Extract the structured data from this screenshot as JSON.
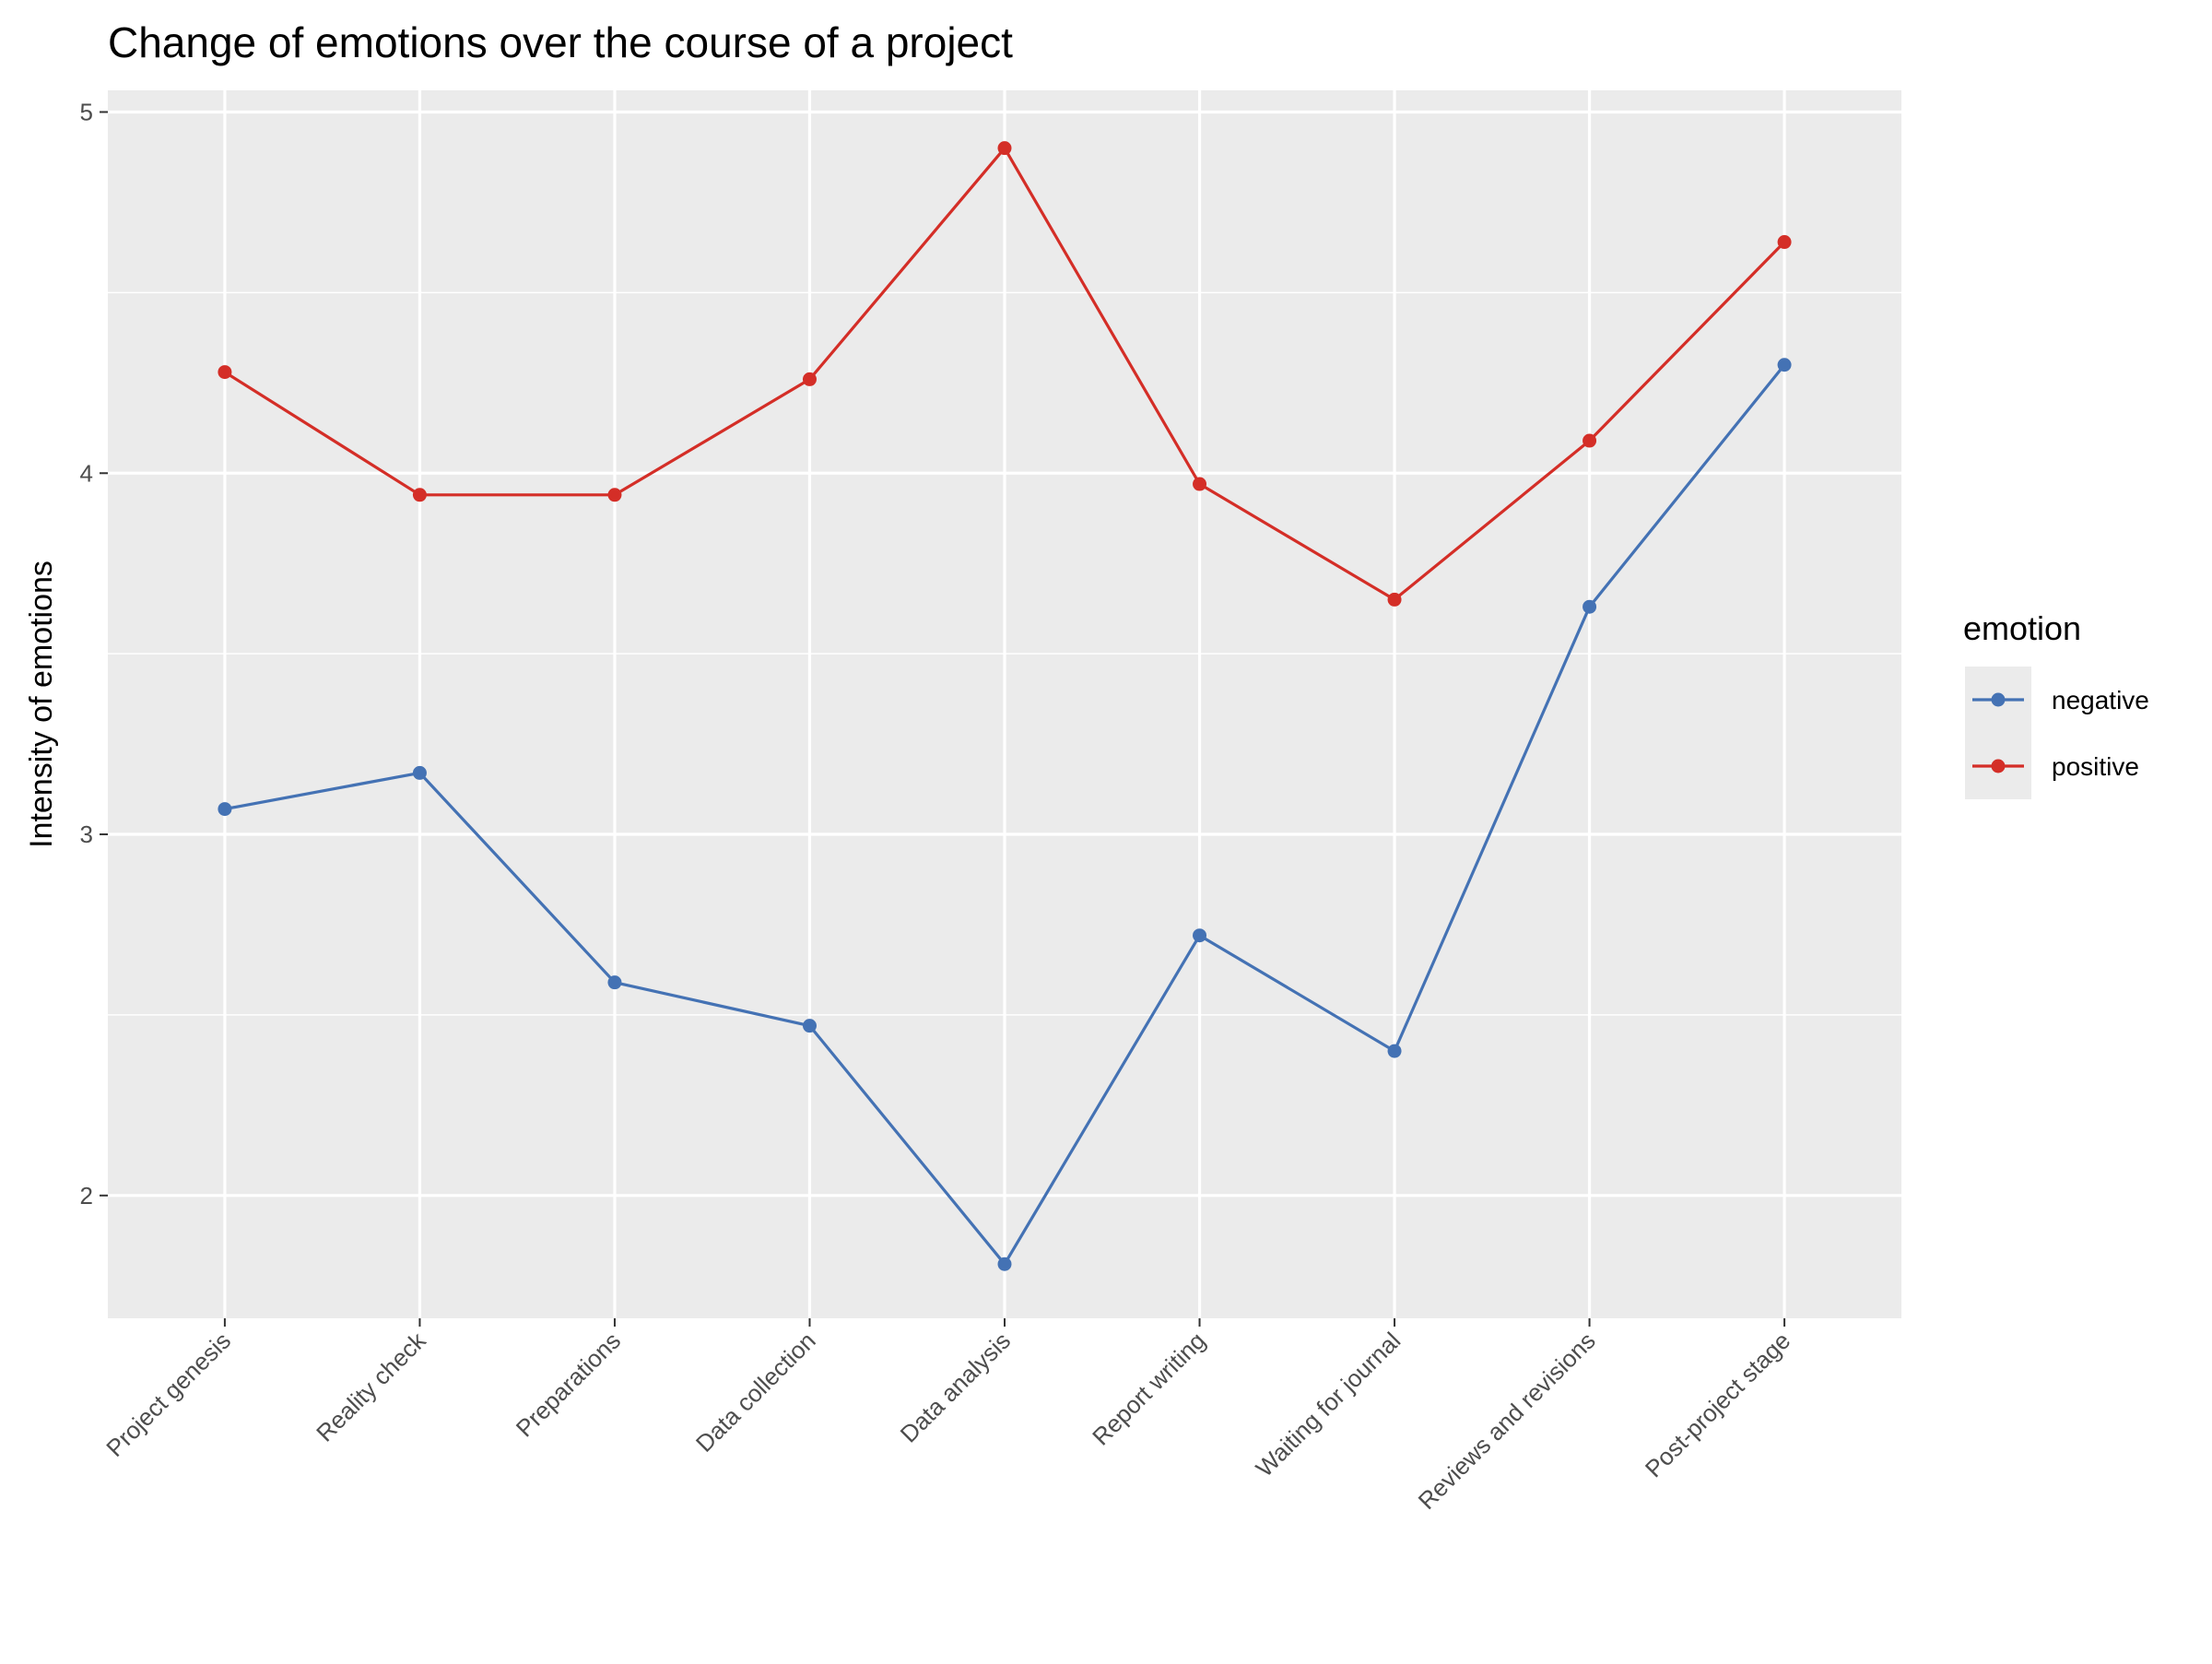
{
  "chart_data": {
    "type": "line",
    "title": "Change of emotions over the course of a project",
    "xlabel": "",
    "ylabel": "Intensity of emotions",
    "categories": [
      "Project genesis",
      "Reality check",
      "Preparations",
      "Data collection",
      "Data analysis",
      "Report writing",
      "Waiting for journal",
      "Reviews and revisions",
      "Post-project stage"
    ],
    "y_ticks": [
      "2",
      "3",
      "4",
      "5"
    ],
    "ylim": [
      1.66,
      5.06
    ],
    "grid": true,
    "legend": {
      "title": "emotion",
      "position": "right"
    },
    "series": [
      {
        "name": "negative",
        "color": "#4472B4",
        "values": [
          3.07,
          3.17,
          2.59,
          2.47,
          1.81,
          2.72,
          2.4,
          3.63,
          4.3
        ]
      },
      {
        "name": "positive",
        "color": "#D42E27",
        "values": [
          4.28,
          3.94,
          3.94,
          4.26,
          4.9,
          3.97,
          3.65,
          4.09,
          4.64
        ]
      }
    ]
  }
}
